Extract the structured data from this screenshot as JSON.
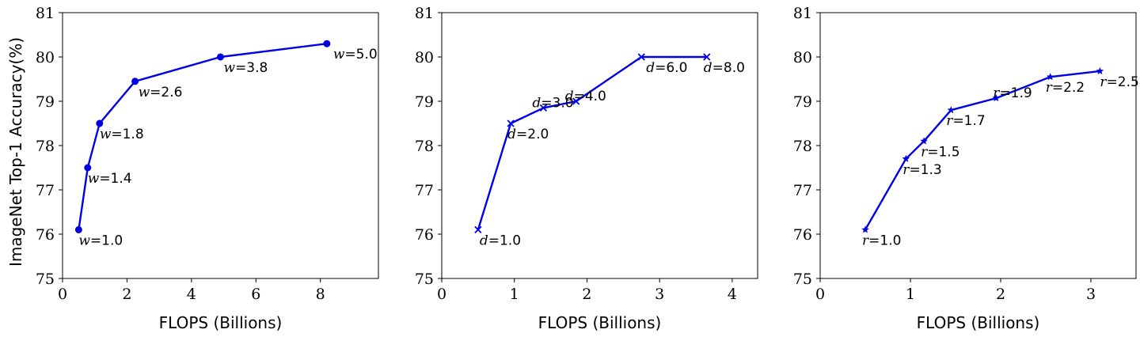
{
  "chart_data": [
    {
      "type": "line",
      "xlabel": "FLOPS (Billions)",
      "ylabel": "ImageNet Top-1 Accuracy(%)",
      "xlim": [
        0,
        9.8
      ],
      "ylim": [
        75,
        81
      ],
      "xticks": [
        "0",
        "2",
        "4",
        "6",
        "8"
      ],
      "yticks": [
        "75",
        "76",
        "77",
        "78",
        "79",
        "80",
        "81"
      ],
      "marker": "circle",
      "color": "#0000e6",
      "points": [
        {
          "x": 0.5,
          "y": 76.1,
          "var": "w",
          "value": "=1.0"
        },
        {
          "x": 0.78,
          "y": 77.5,
          "var": "w",
          "value": "=1.4"
        },
        {
          "x": 1.15,
          "y": 78.5,
          "var": "w",
          "value": "=1.8"
        },
        {
          "x": 2.25,
          "y": 79.45,
          "var": "w",
          "value": "=2.6"
        },
        {
          "x": 4.9,
          "y": 80.0,
          "var": "w",
          "value": "=3.8"
        },
        {
          "x": 8.2,
          "y": 80.3,
          "var": "w",
          "value": "=5.0"
        }
      ]
    },
    {
      "type": "line",
      "xlabel": "FLOPS (Billions)",
      "ylabel": "",
      "xlim": [
        0,
        4.35
      ],
      "ylim": [
        75,
        81
      ],
      "xticks": [
        "0",
        "1",
        "2",
        "3",
        "4"
      ],
      "yticks": [
        "75",
        "76",
        "77",
        "78",
        "79",
        "80",
        "81"
      ],
      "marker": "x",
      "color": "#0000e6",
      "points": [
        {
          "x": 0.5,
          "y": 76.1,
          "var": "d",
          "value": "=1.0"
        },
        {
          "x": 0.95,
          "y": 78.5,
          "var": "d",
          "value": "=2.0"
        },
        {
          "x": 1.4,
          "y": 78.85,
          "var": "d",
          "value": "=3.0"
        },
        {
          "x": 1.85,
          "y": 79.0,
          "var": "d",
          "value": "=4.0"
        },
        {
          "x": 2.75,
          "y": 80.0,
          "var": "d",
          "value": "=6.0"
        },
        {
          "x": 3.65,
          "y": 80.0,
          "var": "d",
          "value": "=8.0"
        }
      ]
    },
    {
      "type": "line",
      "xlabel": "FLOPS (Billions)",
      "ylabel": "",
      "xlim": [
        0,
        3.5
      ],
      "ylim": [
        75,
        81
      ],
      "xticks": [
        "0",
        "1",
        "2",
        "3"
      ],
      "yticks": [
        "75",
        "76",
        "77",
        "78",
        "79",
        "80",
        "81"
      ],
      "marker": "star",
      "color": "#0000e6",
      "points": [
        {
          "x": 0.5,
          "y": 76.1,
          "var": "r",
          "value": "=1.0"
        },
        {
          "x": 0.95,
          "y": 77.7,
          "var": "r",
          "value": "=1.3"
        },
        {
          "x": 1.15,
          "y": 78.1,
          "var": "r",
          "value": "=1.5"
        },
        {
          "x": 1.45,
          "y": 78.8,
          "var": "r",
          "value": "=1.7"
        },
        {
          "x": 1.95,
          "y": 79.07,
          "var": "r",
          "value": "=1.9"
        },
        {
          "x": 2.55,
          "y": 79.55,
          "var": "r",
          "value": "=2.2"
        },
        {
          "x": 3.1,
          "y": 79.68,
          "var": "r",
          "value": "=2.5"
        }
      ]
    }
  ]
}
